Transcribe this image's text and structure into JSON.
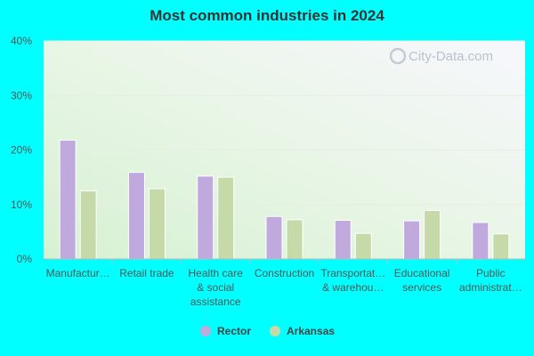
{
  "chart_data": {
    "type": "bar",
    "title": "Most common industries in 2024",
    "categories": [
      [
        "Manufactur…"
      ],
      [
        "Retail trade"
      ],
      [
        "Health care",
        "& social",
        "assistance"
      ],
      [
        "Construction"
      ],
      [
        "Transportat…",
        "& warehou…"
      ],
      [
        "Educational",
        "services"
      ],
      [
        "Public",
        "administrat…"
      ]
    ],
    "series": [
      {
        "name": "Rector",
        "color": "#C0A9DC",
        "values": [
          21.8,
          15.9,
          15.2,
          7.8,
          7.1,
          7.0,
          6.7
        ]
      },
      {
        "name": "Arkansas",
        "color": "#C6D9A9",
        "values": [
          12.5,
          12.9,
          15.0,
          7.2,
          4.7,
          8.9,
          4.6
        ]
      }
    ],
    "ylim": [
      0,
      40
    ],
    "yticks": [
      "0%",
      "10%",
      "20%",
      "30%",
      "40%"
    ],
    "grid": true,
    "legend_position": "bottom"
  },
  "watermark": {
    "text": "City-Data.com"
  }
}
